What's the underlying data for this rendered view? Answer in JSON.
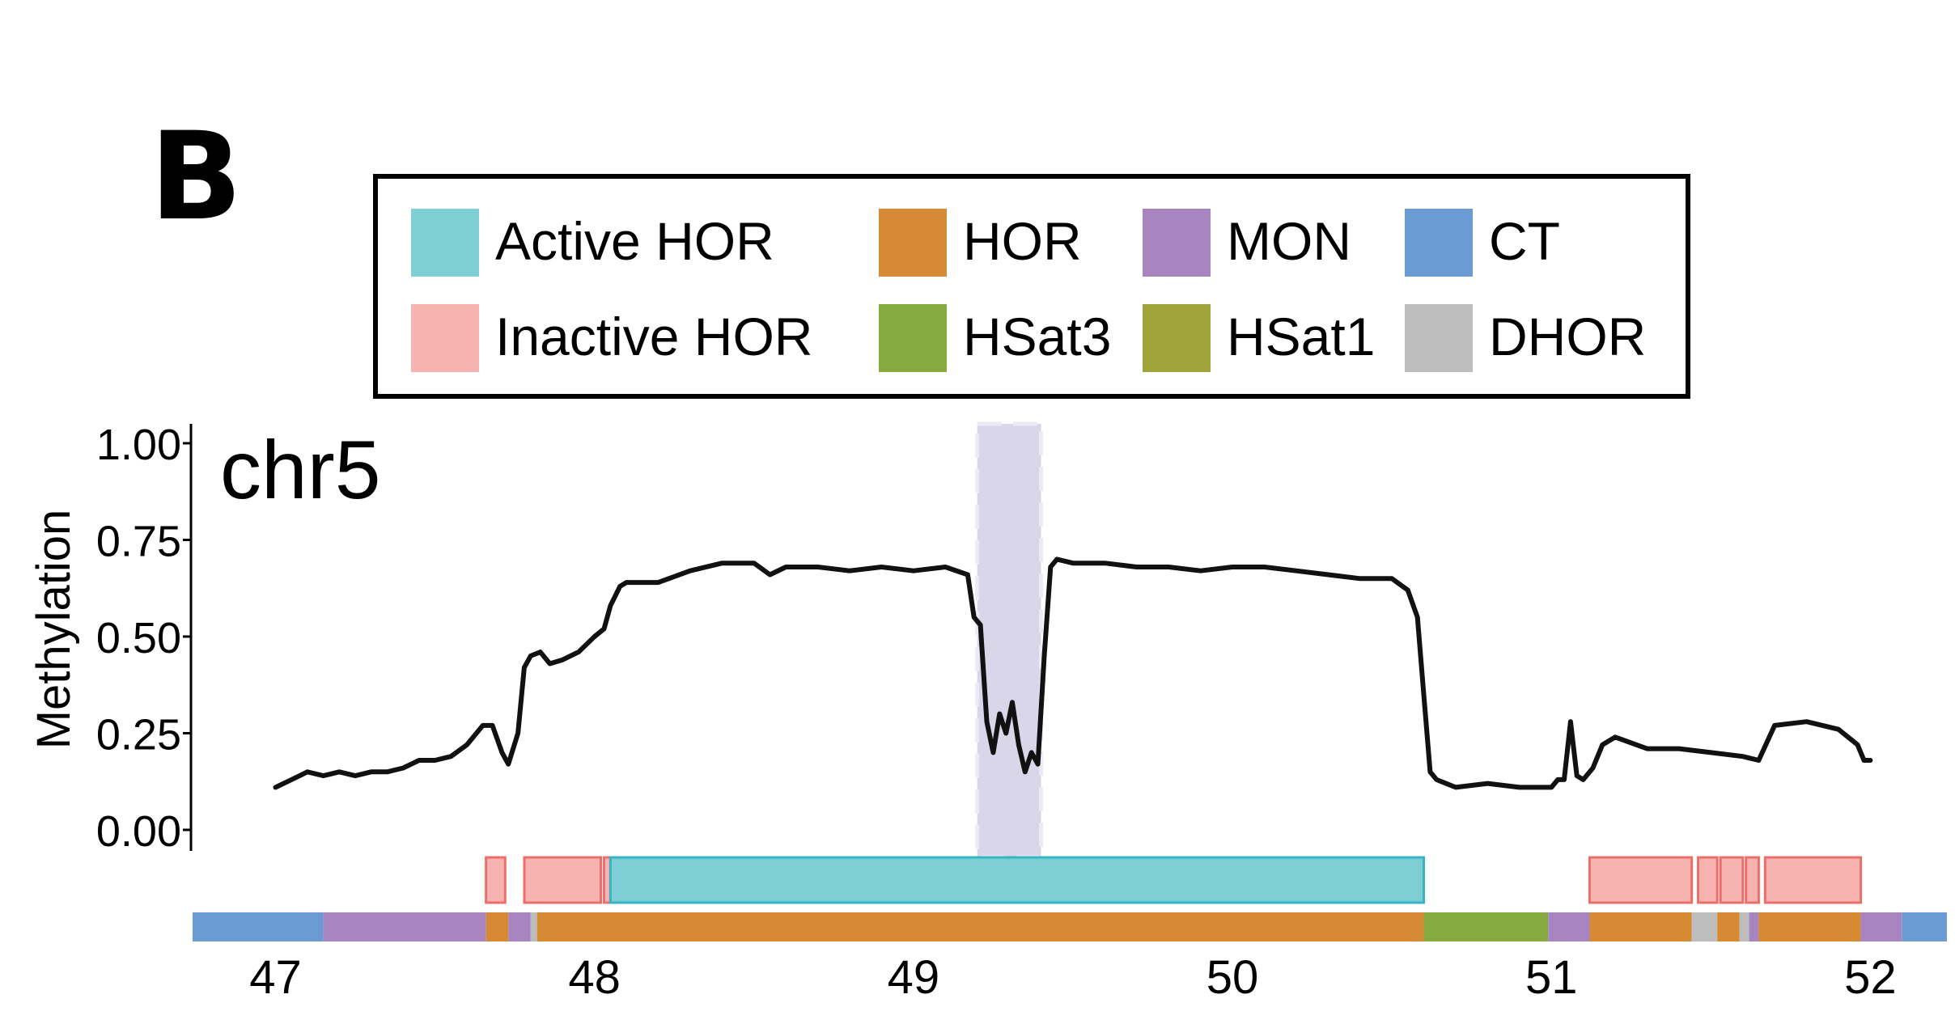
{
  "panel_label": "B",
  "legend": [
    {
      "label": "Active HOR",
      "color": "#7ecfd5"
    },
    {
      "label": "HOR",
      "color": "#d68a33"
    },
    {
      "label": "MON",
      "color": "#a885c1"
    },
    {
      "label": "CT",
      "color": "#6a9bd3"
    },
    {
      "label": "Inactive HOR",
      "color": "#f6b3b0"
    },
    {
      "label": "HSat3",
      "color": "#86aa3f"
    },
    {
      "label": "HSat1",
      "color": "#9ea439"
    },
    {
      "label": "DHOR",
      "color": "#bdbdbd"
    }
  ],
  "chart_data": {
    "type": "line",
    "title": "chr5",
    "xlabel": "",
    "ylabel": "Methylation",
    "xlim": [
      46.74,
      52.24
    ],
    "ylim": [
      0,
      1
    ],
    "x_ticks": [
      "47",
      "48",
      "49",
      "50",
      "51",
      "52"
    ],
    "y_ticks": [
      "0.00",
      "0.25",
      "0.50",
      "0.75",
      "1.00"
    ],
    "highlight_region": {
      "x_start": 49.2,
      "x_end": 49.4,
      "color": "#d9d6ea"
    },
    "series": [
      {
        "color": "#111111",
        "x": [
          47.0,
          47.05,
          47.1,
          47.15,
          47.2,
          47.25,
          47.3,
          47.35,
          47.4,
          47.45,
          47.5,
          47.55,
          47.6,
          47.65,
          47.68,
          47.71,
          47.73,
          47.76,
          47.78,
          47.8,
          47.83,
          47.86,
          47.9,
          47.95,
          48.0,
          48.03,
          48.05,
          48.08,
          48.1,
          48.2,
          48.3,
          48.4,
          48.5,
          48.55,
          48.6,
          48.7,
          48.8,
          48.9,
          49.0,
          49.1,
          49.17,
          49.19,
          49.21,
          49.23,
          49.25,
          49.27,
          49.29,
          49.31,
          49.33,
          49.35,
          49.37,
          49.39,
          49.41,
          49.43,
          49.45,
          49.5,
          49.6,
          49.7,
          49.8,
          49.9,
          50.0,
          50.1,
          50.2,
          50.3,
          50.4,
          50.5,
          50.55,
          50.58,
          50.6,
          50.62,
          50.64,
          50.7,
          50.8,
          50.9,
          51.0,
          51.02,
          51.04,
          51.06,
          51.08,
          51.1,
          51.13,
          51.16,
          51.2,
          51.3,
          51.4,
          51.5,
          51.6,
          51.65,
          51.7,
          51.8,
          51.9,
          51.96,
          51.98,
          52.0
        ],
        "y": [
          0.11,
          0.13,
          0.15,
          0.14,
          0.15,
          0.14,
          0.15,
          0.15,
          0.16,
          0.18,
          0.18,
          0.19,
          0.22,
          0.27,
          0.27,
          0.2,
          0.17,
          0.25,
          0.42,
          0.45,
          0.46,
          0.43,
          0.44,
          0.46,
          0.5,
          0.52,
          0.58,
          0.63,
          0.64,
          0.64,
          0.67,
          0.69,
          0.69,
          0.66,
          0.68,
          0.68,
          0.67,
          0.68,
          0.67,
          0.68,
          0.66,
          0.55,
          0.53,
          0.28,
          0.2,
          0.3,
          0.25,
          0.33,
          0.22,
          0.15,
          0.2,
          0.17,
          0.45,
          0.68,
          0.7,
          0.69,
          0.69,
          0.68,
          0.68,
          0.67,
          0.68,
          0.68,
          0.67,
          0.66,
          0.65,
          0.65,
          0.62,
          0.55,
          0.35,
          0.15,
          0.13,
          0.11,
          0.12,
          0.11,
          0.11,
          0.13,
          0.13,
          0.28,
          0.14,
          0.13,
          0.16,
          0.22,
          0.24,
          0.21,
          0.21,
          0.2,
          0.19,
          0.18,
          0.27,
          0.28,
          0.26,
          0.22,
          0.18,
          0.18
        ]
      }
    ],
    "active_track": [
      {
        "type": "Inactive HOR",
        "start": 47.66,
        "end": 47.72
      },
      {
        "type": "Inactive HOR",
        "start": 47.78,
        "end": 48.02
      },
      {
        "type": "Inactive HOR",
        "start": 48.03,
        "end": 48.05
      },
      {
        "type": "Active HOR",
        "start": 48.05,
        "end": 50.6
      },
      {
        "type": "Inactive HOR",
        "start": 51.12,
        "end": 51.44
      },
      {
        "type": "Inactive HOR",
        "start": 51.46,
        "end": 51.52
      },
      {
        "type": "Inactive HOR",
        "start": 51.53,
        "end": 51.6
      },
      {
        "type": "Inactive HOR",
        "start": 51.61,
        "end": 51.65
      },
      {
        "type": "Inactive HOR",
        "start": 51.67,
        "end": 51.97
      }
    ],
    "annotation_track": [
      {
        "type": "CT",
        "start": 46.74,
        "end": 47.15
      },
      {
        "type": "MON",
        "start": 47.15,
        "end": 47.66
      },
      {
        "type": "HOR",
        "start": 47.66,
        "end": 47.73
      },
      {
        "type": "MON",
        "start": 47.73,
        "end": 47.8
      },
      {
        "type": "DHOR",
        "start": 47.8,
        "end": 47.82
      },
      {
        "type": "HOR",
        "start": 47.82,
        "end": 50.6
      },
      {
        "type": "HSat3",
        "start": 50.6,
        "end": 50.99
      },
      {
        "type": "MON",
        "start": 50.99,
        "end": 51.12
      },
      {
        "type": "HOR",
        "start": 51.12,
        "end": 51.44
      },
      {
        "type": "DHOR",
        "start": 51.44,
        "end": 51.52
      },
      {
        "type": "HOR",
        "start": 51.52,
        "end": 51.59
      },
      {
        "type": "DHOR",
        "start": 51.59,
        "end": 51.62
      },
      {
        "type": "MON",
        "start": 51.62,
        "end": 51.65
      },
      {
        "type": "HOR",
        "start": 51.65,
        "end": 51.97
      },
      {
        "type": "MON",
        "start": 51.97,
        "end": 52.1
      },
      {
        "type": "CT",
        "start": 52.1,
        "end": 52.24
      }
    ]
  }
}
